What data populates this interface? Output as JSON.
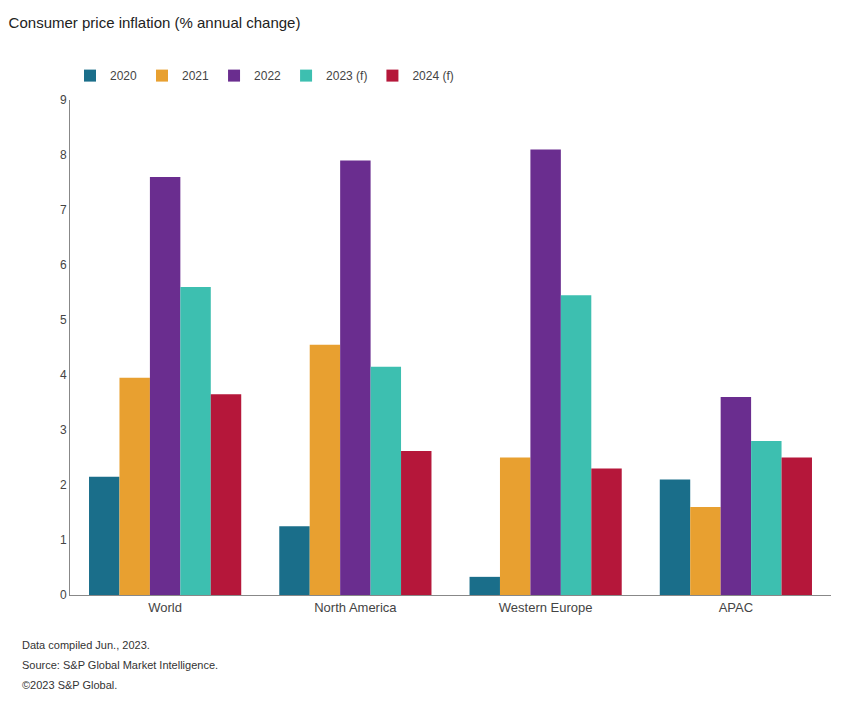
{
  "chart_data": {
    "type": "bar",
    "title": "Consumer price inflation (% annual change)",
    "categories": [
      "World",
      "North America",
      "Western Europe",
      "APAC"
    ],
    "series": [
      {
        "name": "2020",
        "color": "#1a6e8a",
        "values": [
          2.15,
          1.25,
          0.33,
          2.1
        ]
      },
      {
        "name": "2021",
        "color": "#e8a030",
        "values": [
          3.95,
          4.55,
          2.5,
          1.6
        ]
      },
      {
        "name": "2022",
        "color": "#6a2d8f",
        "values": [
          7.6,
          7.9,
          8.1,
          3.6
        ]
      },
      {
        "name": "2023 (f)",
        "color": "#3dbfb0",
        "values": [
          5.6,
          4.15,
          5.45,
          2.8
        ]
      },
      {
        "name": "2024 (f)",
        "color": "#b5173a",
        "values": [
          3.65,
          2.62,
          2.3,
          2.5
        ]
      }
    ],
    "ylim": [
      0,
      9
    ],
    "yticks": [
      0,
      1,
      2,
      3,
      4,
      5,
      6,
      7,
      8,
      9
    ],
    "grid": false,
    "legend": "top left",
    "annotations": [
      "Data compiled Jun., 2023.",
      "Source: S&P Global Market Intelligence.",
      "©2023 S&P Global."
    ]
  }
}
